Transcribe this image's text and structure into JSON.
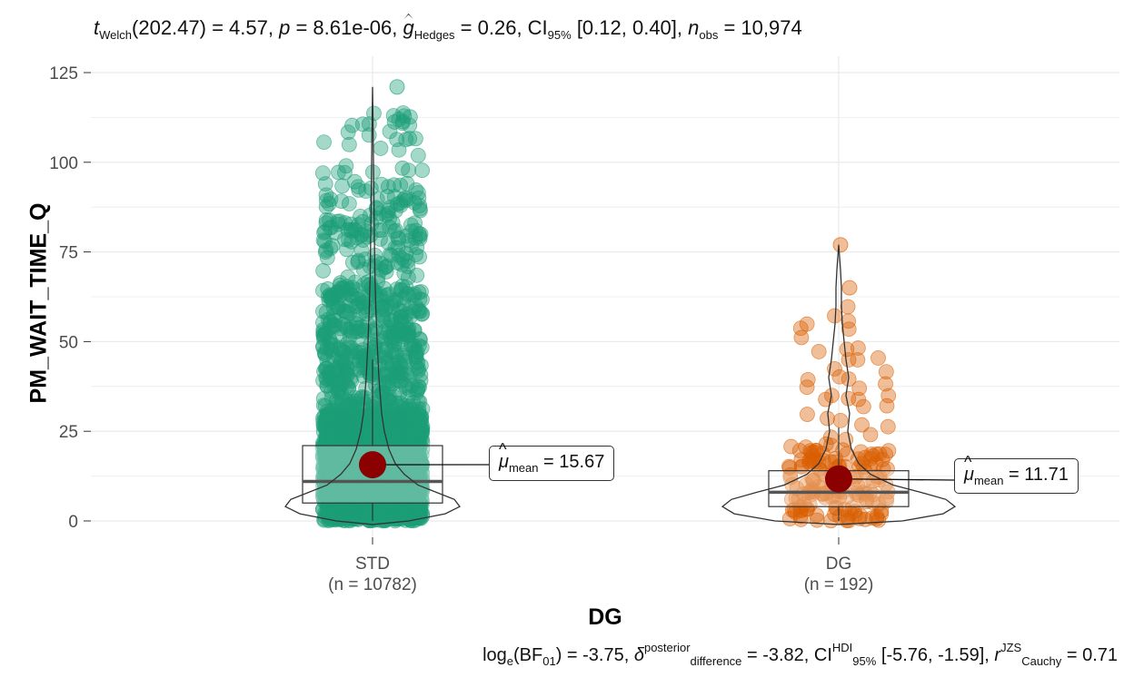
{
  "title": {
    "stat_symbol": "t",
    "stat_sub": "Welch",
    "stat_rest": "(202.47) = 4.57, ",
    "p_symbol": "p",
    "p_rest": " = 8.61e-06, ",
    "g_symbol": "g",
    "g_sub": "Hedges",
    "g_rest": " = 0.26, CI",
    "ci_sub": "95%",
    "ci_rest": " [0.12, 0.40], ",
    "n_symbol": "n",
    "n_sub": "obs",
    "n_rest": " = 10,974"
  },
  "caption": {
    "log_text": "log",
    "log_sub": "e",
    "bf_text": "(BF",
    "bf_sub": "01",
    "bf_rest": ") = -3.75, ",
    "delta_symbol": "δ",
    "delta_sup": "posterior",
    "delta_sub": "difference",
    "delta_rest": " = -3.82, CI",
    "ci_sup": "HDI",
    "ci_sub": "95%",
    "ci_rest": " [-5.76, -1.59], ",
    "r_symbol": "r",
    "r_sup": "JZS",
    "r_sub": "Cauchy",
    "r_rest": " = 0.71"
  },
  "axes": {
    "xlabel": "DG",
    "ylabel": "PM_WAIT_TIME_Q"
  },
  "chart_data": {
    "type": "violin-box-scatter",
    "y_ticks": [
      "0",
      "25",
      "50",
      "75",
      "100",
      "125"
    ],
    "ylim": [
      -3,
      125
    ],
    "grid": true,
    "groups": [
      {
        "name": "STD",
        "n_label": "(n = 10782)",
        "n": 10782,
        "color": "#1b9e77",
        "box": {
          "q1": 5,
          "median": 11,
          "q3": 21,
          "whisker_low": 0,
          "whisker_high": 45
        },
        "max": 121,
        "mean": 15.67,
        "mean_label_symbol": "μ",
        "mean_label_sub": "mean",
        "mean_label_value": " = 15.67"
      },
      {
        "name": "DG",
        "n_label": "(n = 192)",
        "n": 192,
        "color": "#d95f02",
        "box": {
          "q1": 4,
          "median": 8,
          "q3": 14,
          "whisker_low": 0,
          "whisker_high": 26
        },
        "max": 77,
        "mean": 11.71,
        "mean_label_symbol": "μ",
        "mean_label_sub": "mean",
        "mean_label_value": " = 11.71"
      }
    ],
    "mean_point_color": "#8b0000"
  }
}
